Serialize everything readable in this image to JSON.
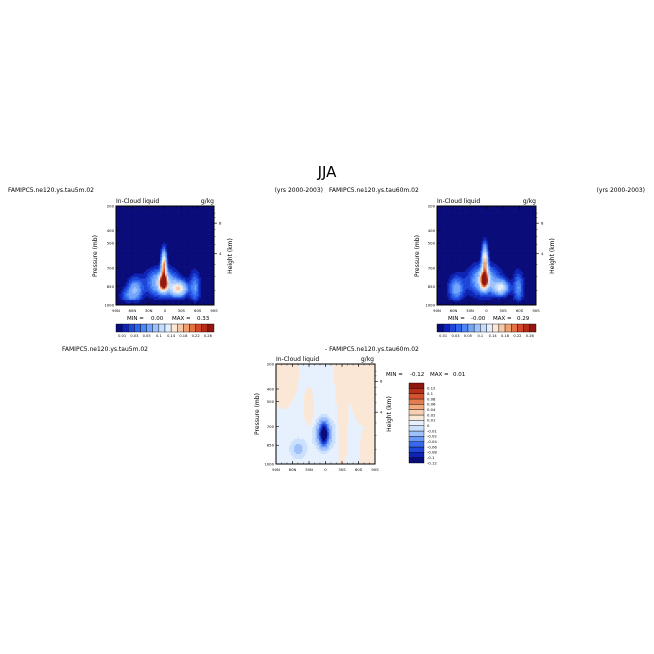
{
  "figure": {
    "title": "JJA"
  },
  "palettes": {
    "field": [
      "#0a0c7a",
      "#0f24b4",
      "#1e46d8",
      "#2f65ec",
      "#4d86f5",
      "#73a5fb",
      "#9dc3fd",
      "#c4dcfe",
      "#e4eefb",
      "#fbe7d6",
      "#f8c8a6",
      "#f1a070",
      "#e57245",
      "#d24a2a",
      "#b62c1a",
      "#92180f"
    ],
    "diff": [
      "#0a0c7a",
      "#0f24b4",
      "#1e46d8",
      "#3769ee",
      "#6b98f6",
      "#9fc0fb",
      "#cbe0fd",
      "#e7f1fd",
      "#fbe7d6",
      "#f8cfb0",
      "#f2a97d",
      "#e57c50",
      "#d4532f",
      "#b8301b",
      "#8f1710"
    ]
  },
  "chart_data": [
    {
      "type": "heatmap",
      "case_label": "FAMIPC5.ne120.ys.tau5m.02",
      "years_label": "(yrs 2000-2003)",
      "variable_label": "In-Cloud liquid",
      "units_label": "g/kg",
      "ylabel": "Pressure (mb)",
      "y2label": "Height (km)",
      "x_ticks": [
        "90N",
        "60N",
        "30N",
        "0",
        "30S",
        "60S",
        "90S"
      ],
      "y_ticks": [
        "200",
        "400",
        "500",
        "700",
        "850",
        "1000"
      ],
      "y2_ticks": [
        "8",
        "4"
      ],
      "min_label": "MIN = ",
      "min_value": "0.00",
      "max_label": "MAX = ",
      "max_value": "0.33",
      "colorbar_labels": [
        "0.01",
        "0.03",
        "0.05",
        "0.1",
        "0.14",
        "0.18",
        "0.22",
        "0.26"
      ],
      "levels": [
        0.01,
        0.02,
        0.03,
        0.04,
        0.05,
        0.07,
        0.1,
        0.12,
        0.14,
        0.16,
        0.18,
        0.2,
        0.22,
        0.24,
        0.26
      ]
    },
    {
      "type": "heatmap",
      "case_label": "FAMIPC5.ne120.ys.tau60m.02",
      "years_label": "(yrs 2000-2003)",
      "variable_label": "In-Cloud liquid",
      "units_label": "g/kg",
      "ylabel": "Pressure (mb)",
      "y2label": "Height (km)",
      "x_ticks": [
        "90N",
        "60N",
        "30N",
        "0",
        "30S",
        "60S",
        "90S"
      ],
      "y_ticks": [
        "200",
        "400",
        "500",
        "700",
        "850",
        "1000"
      ],
      "y2_ticks": [
        "8",
        "4"
      ],
      "min_label": "MIN = ",
      "min_value": "-0.00",
      "max_label": "MAX = ",
      "max_value": "0.29",
      "colorbar_labels": [
        "0.01",
        "0.03",
        "0.05",
        "0.1",
        "0.14",
        "0.18",
        "0.22",
        "0.26"
      ],
      "levels": [
        0.01,
        0.02,
        0.03,
        0.04,
        0.05,
        0.07,
        0.1,
        0.12,
        0.14,
        0.16,
        0.18,
        0.2,
        0.22,
        0.24,
        0.26
      ]
    },
    {
      "type": "heatmap",
      "case_label": "FAMIPC5.ne120.ys.tau5m.02",
      "diff_label": "- FAMIPC5.ne120.ys.tau60m.02",
      "variable_label": "In-Cloud liquid",
      "units_label": "g/kg",
      "ylabel": "Pressure (mb)",
      "y2label": "Height (km)",
      "x_ticks": [
        "90N",
        "60N",
        "30N",
        "0",
        "30S",
        "60S",
        "90S"
      ],
      "y_ticks": [
        "200",
        "400",
        "500",
        "700",
        "850",
        "1000"
      ],
      "y2_ticks": [
        "8",
        "4"
      ],
      "min_label": "MIN = ",
      "min_value": "-0.12",
      "max_label": "MAX = ",
      "max_value": "0.01",
      "colorbar_labels": [
        "0.12",
        "0.1",
        "0.08",
        "0.06",
        "0.04",
        "0.02",
        "0.01",
        "0",
        "-0.01",
        "-0.02",
        "-0.04",
        "-0.06",
        "-0.08",
        "-0.1",
        "-0.12"
      ],
      "levels": [
        -0.12,
        -0.1,
        -0.08,
        -0.06,
        -0.04,
        -0.02,
        -0.01,
        0,
        0.01,
        0.02,
        0.04,
        0.06,
        0.08,
        0.1
      ]
    }
  ]
}
